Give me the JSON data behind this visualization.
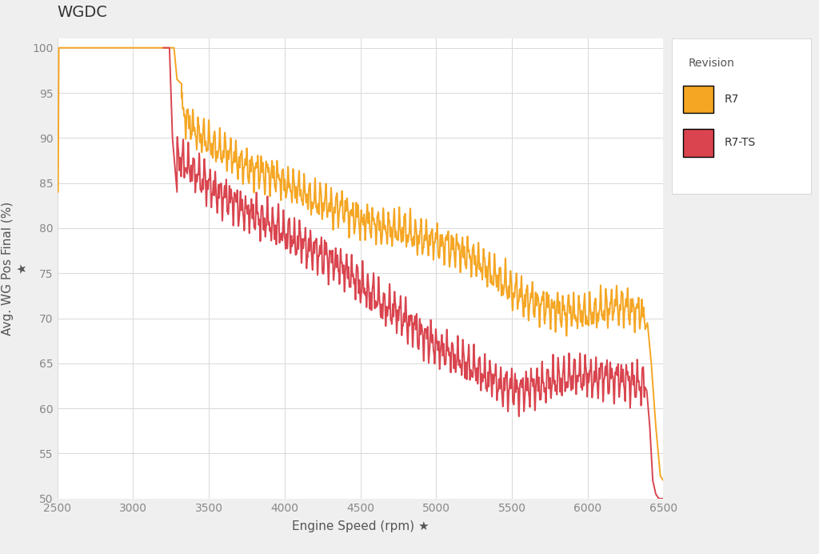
{
  "title": "WGDC",
  "xlabel": "Engine Speed (rpm) ★",
  "ylabel": "Avg. WG Pos Final (%)\n★",
  "xlim": [
    2500,
    6500
  ],
  "ylim": [
    50,
    101
  ],
  "yticks": [
    50,
    55,
    60,
    65,
    70,
    75,
    80,
    85,
    90,
    95,
    100
  ],
  "xticks": [
    2500,
    3000,
    3500,
    4000,
    4500,
    5000,
    5500,
    6000,
    6500
  ],
  "color_r7": "#F5A623",
  "color_r7ts": "#D9444E",
  "legend_title": "Revision",
  "legend_r7": "R7",
  "legend_r7ts": "R7-TS",
  "plot_bg_color": "#ffffff",
  "fig_bg_color": "#efefef",
  "legend_bg_color": "#ffffff",
  "grid_color": "#d8d8d8",
  "title_fontsize": 14,
  "label_fontsize": 11,
  "tick_fontsize": 10,
  "legend_fontsize": 10,
  "linewidth": 1.4
}
